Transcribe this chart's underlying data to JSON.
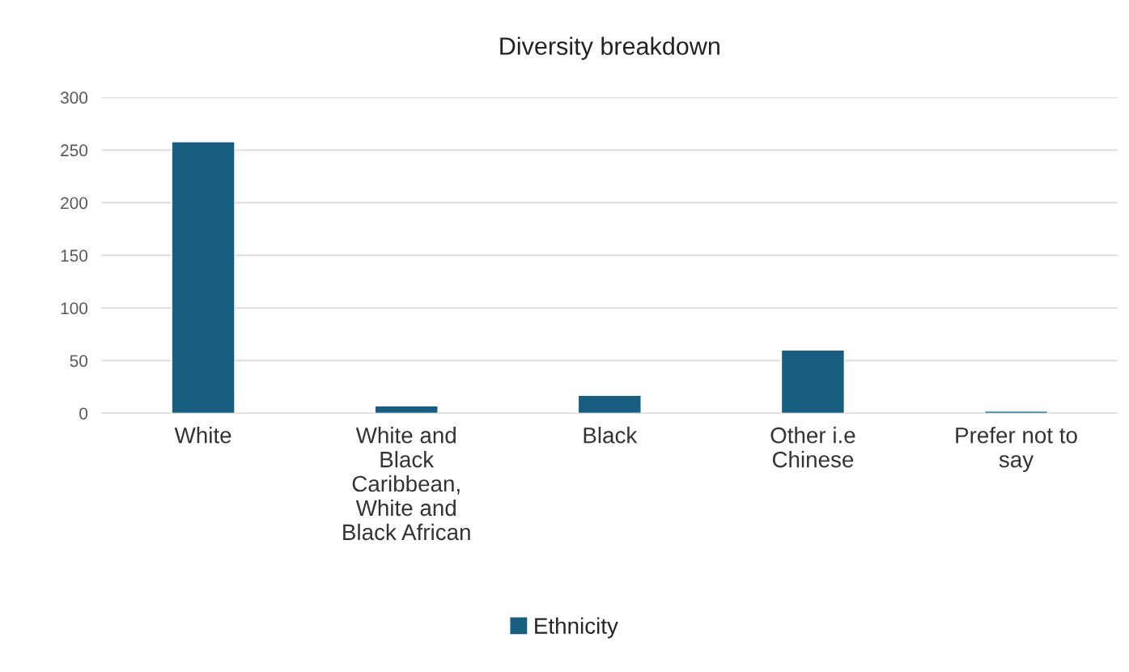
{
  "chart_data": {
    "type": "bar",
    "title": "Diversity breakdown",
    "categories": [
      "White",
      "White and\nBlack\nCaribbean,\nWhite and\nBlack African",
      "Black",
      "Other i.e\nChinese",
      "Prefer not to\nsay"
    ],
    "series": [
      {
        "name": "Ethnicity",
        "color": "#175e80",
        "values": [
          258,
          7,
          17,
          60,
          2
        ]
      }
    ],
    "ylim": [
      0,
      300
    ],
    "yticks": [
      0,
      50,
      100,
      150,
      200,
      250,
      300
    ],
    "grid": "y",
    "legend": "bottom"
  }
}
